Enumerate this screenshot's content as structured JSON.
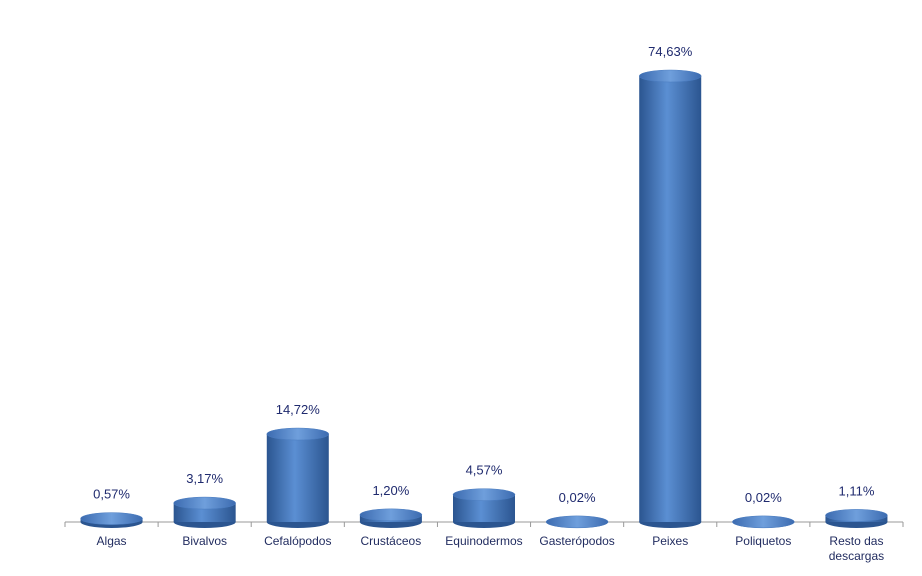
{
  "chart_data": {
    "type": "bar",
    "categories": [
      "Algas",
      "Bivalvos",
      "Cefalópodos",
      "Crustáceos",
      "Equinodermos",
      "Gasterópodos",
      "Peixes",
      "Poliquetos",
      "Resto das descargas"
    ],
    "values": [
      0.57,
      3.17,
      14.72,
      1.2,
      4.57,
      0.02,
      74.63,
      0.02,
      1.11
    ],
    "value_labels": [
      "0,57%",
      "3,17%",
      "14,72%",
      "1,20%",
      "4,57%",
      "0,02%",
      "74,63%",
      "0,02%",
      "1,11%"
    ],
    "color": "#4a7cc0"
  }
}
